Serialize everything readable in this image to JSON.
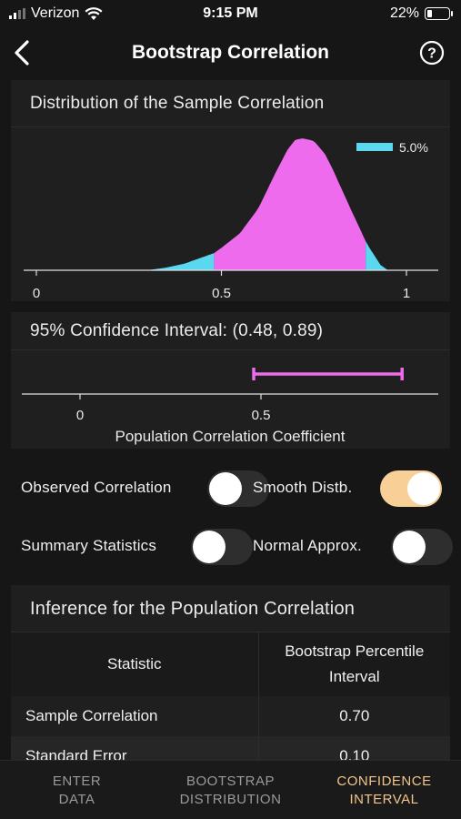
{
  "status_bar": {
    "carrier": "Verizon",
    "time": "9:15 PM",
    "battery": "22%",
    "battery_level": 0.22
  },
  "nav": {
    "title": "Bootstrap Correlation",
    "back_icon": "chevron-left-icon",
    "help_icon": "question-circle-icon"
  },
  "distribution_panel": {
    "title": "Distribution of the Sample Correlation",
    "legend_label": "5.0%",
    "legend_color": "#5ad8f0",
    "fill_color": "#ee6bee",
    "tail_color": "#5ad8f0",
    "x_ticks": [
      "0",
      "0.5",
      "1"
    ]
  },
  "chart_data": [
    {
      "type": "area",
      "title": "Distribution of the Sample Correlation",
      "xlim": [
        0,
        1
      ],
      "x": [
        0.3,
        0.35,
        0.4,
        0.45,
        0.48,
        0.5,
        0.55,
        0.6,
        0.65,
        0.68,
        0.7,
        0.72,
        0.75,
        0.78,
        0.8,
        0.85,
        0.89,
        0.9,
        0.93,
        0.95
      ],
      "density": [
        0.0,
        0.02,
        0.05,
        0.1,
        0.13,
        0.17,
        0.28,
        0.47,
        0.76,
        0.92,
        0.99,
        1.0,
        0.98,
        0.88,
        0.77,
        0.46,
        0.22,
        0.17,
        0.04,
        0.0
      ],
      "lower_tail_cut": 0.48,
      "upper_tail_cut": 0.89,
      "tail_label": "5.0%",
      "x_ticks": [
        0,
        0.5,
        1
      ]
    },
    {
      "type": "interval",
      "title": "95% Confidence Interval: (0.48, 0.89)",
      "lower": 0.48,
      "upper": 0.89,
      "xlim": [
        -0.13,
        1.0
      ],
      "x_ticks": [
        0,
        0.5
      ],
      "xlabel": "Population Correlation Coefficient"
    }
  ],
  "ci_panel": {
    "title": "95% Confidence Interval: (0.48, 0.89)",
    "x_ticks": [
      "0",
      "0.5"
    ],
    "xlabel": "Population Correlation Coefficient",
    "bar_color": "#ee6bee"
  },
  "toggles": {
    "observed": {
      "label": "Observed Correlation",
      "on": false
    },
    "smooth": {
      "label": "Smooth Distb.",
      "on": true
    },
    "summary": {
      "label": "Summary Statistics",
      "on": false
    },
    "normal": {
      "label": "Normal Approx.",
      "on": false
    },
    "on_color": "#f7cf97"
  },
  "inference": {
    "title": "Inference for the Population Correlation",
    "col_statistic": "Statistic",
    "col_interval_line1": "Bootstrap Percentile",
    "col_interval_line2": "Interval",
    "rows": [
      {
        "name": "Sample Correlation",
        "value": "0.70"
      },
      {
        "name": "Standard Error",
        "value": "0.10"
      }
    ]
  },
  "tabs": [
    {
      "line1": "ENTER",
      "line2": "DATA",
      "active": false
    },
    {
      "line1": "BOOTSTRAP",
      "line2": "DISTRIBUTION",
      "active": false
    },
    {
      "line1": "CONFIDENCE",
      "line2": "INTERVAL",
      "active": true
    }
  ]
}
